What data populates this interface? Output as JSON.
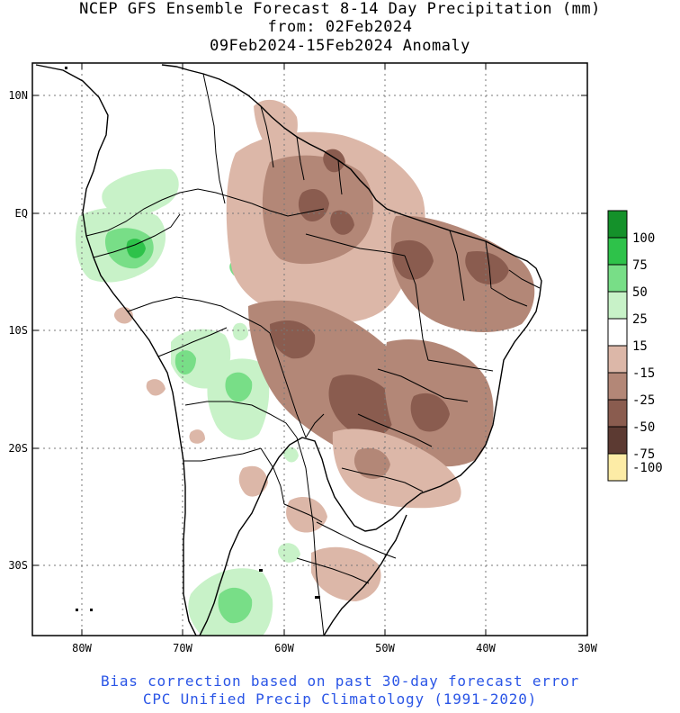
{
  "titles": {
    "line1": "NCEP GFS Ensemble Forecast 8-14 Day Precipitation (mm)",
    "line2": "from: 02Feb2024",
    "line3": "09Feb2024-15Feb2024 Anomaly"
  },
  "axes": {
    "lat_labels": [
      "10N",
      "EQ",
      "10S",
      "20S",
      "30S"
    ],
    "lon_labels": [
      "80W",
      "70W",
      "60W",
      "50W",
      "40W",
      "30W"
    ]
  },
  "legend": {
    "entries": [
      {
        "label": "100",
        "color": "#14912a"
      },
      {
        "label": "75",
        "color": "#2ec24a"
      },
      {
        "label": "50",
        "color": "#78de87"
      },
      {
        "label": "25",
        "color": "#c8f2c8"
      },
      {
        "label": "15",
        "color": "#ffffff"
      },
      {
        "label": "-15",
        "color": "#dcb7a8"
      },
      {
        "label": "-25",
        "color": "#b38777"
      },
      {
        "label": "-50",
        "color": "#8a5c4f"
      },
      {
        "label": "-75",
        "color": "#5c3a32"
      },
      {
        "label": "-100",
        "color": "#fdeca6"
      }
    ]
  },
  "footer": {
    "line1": "Bias correction based on past 30-day forecast error",
    "line2": "CPC Unified Precip Climatology (1991-2020)"
  }
}
